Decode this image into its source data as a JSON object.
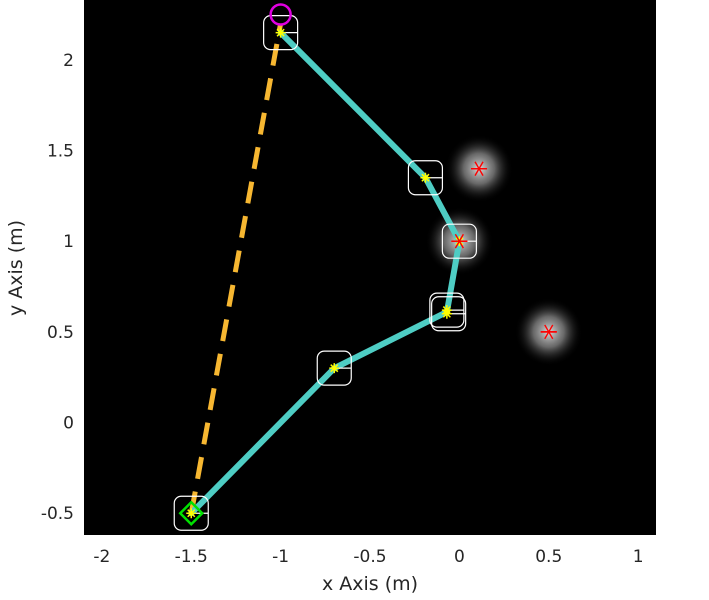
{
  "chart_data": {
    "type": "scatter",
    "title": "",
    "xlabel": "x Axis (m)",
    "ylabel": "y Axis (m)",
    "xlim": [
      -2.1,
      1.1
    ],
    "ylim": [
      -0.62,
      2.33
    ],
    "xticks": [
      -2,
      -1.5,
      -1,
      -0.5,
      0,
      0.5,
      1
    ],
    "xtick_labels": [
      "-2",
      "-1.5",
      "-1",
      "-0.5",
      "0",
      "0.5",
      "1"
    ],
    "yticks": [
      -0.5,
      0,
      0.5,
      1,
      1.5,
      2
    ],
    "ytick_labels": [
      "-0.5",
      "0",
      "0.5",
      "1",
      "1.5",
      "2"
    ],
    "background": "#000000",
    "grid": false,
    "legend": "none",
    "colors": {
      "path": "#4ecdc4",
      "straight_line": "#f7b731",
      "waypoint": "#ffff00",
      "obstacle": "#ff0000",
      "start": "#00e000",
      "goal": "#e000e0",
      "box": "#ffffff"
    },
    "series": [
      {
        "kind": "line",
        "style": "dashed",
        "points": [
          [
            -1.5,
            -0.5
          ],
          [
            -1.0,
            2.2
          ]
        ]
      },
      {
        "kind": "line",
        "style": "solid",
        "points": [
          [
            -1.5,
            -0.5
          ],
          [
            -0.7,
            0.3
          ],
          [
            -0.07,
            0.61
          ],
          [
            0.0,
            1.0
          ],
          [
            -0.19,
            1.35
          ],
          [
            -1.0,
            2.15
          ]
        ]
      },
      {
        "kind": "waypoints",
        "marker": "star",
        "points": [
          [
            -1.5,
            -0.5
          ],
          [
            -0.7,
            0.3
          ],
          [
            -0.07,
            0.62
          ],
          [
            -0.07,
            0.6
          ],
          [
            0.0,
            1.0
          ],
          [
            -0.19,
            1.35
          ],
          [
            -1.0,
            2.15
          ]
        ]
      },
      {
        "kind": "boxes",
        "points": [
          [
            -1.5,
            -0.5
          ],
          [
            -0.7,
            0.3
          ],
          [
            -0.07,
            0.62
          ],
          [
            -0.06,
            0.6
          ],
          [
            0.0,
            1.0
          ],
          [
            -0.19,
            1.35
          ],
          [
            -1.0,
            2.15
          ]
        ]
      },
      {
        "kind": "obstacles",
        "marker": "asterisk",
        "points": [
          [
            0.11,
            1.4
          ],
          [
            0.0,
            1.0
          ],
          [
            0.5,
            0.5
          ]
        ]
      },
      {
        "kind": "start",
        "marker": "diamond",
        "points": [
          [
            -1.5,
            -0.5
          ]
        ]
      },
      {
        "kind": "goal",
        "marker": "circle",
        "points": [
          [
            -1.0,
            2.25
          ]
        ]
      }
    ]
  }
}
